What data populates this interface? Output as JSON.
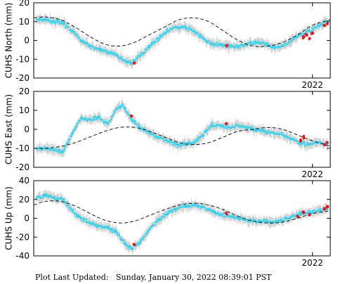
{
  "footer": {
    "label": "Plot Last Updated:",
    "timestamp": "Sunday, January 30, 2022 08:39:01 PST"
  },
  "colors": {
    "obs": "#33d6f0",
    "recent": "#e8141c",
    "errorbar": "#c8c8c8",
    "model": "#000000"
  },
  "chart_data": [
    {
      "type": "scatter",
      "ylabel": "CUHS North (mm)",
      "ylim": [
        -20,
        20
      ],
      "yticks": [
        -20,
        -10,
        0,
        10,
        20
      ],
      "xlim": [
        2017.3,
        2022.3
      ],
      "xtick_labels": [
        {
          "x": 2022.0,
          "label": "2022"
        }
      ],
      "series": [
        {
          "role": "observed",
          "x": [
            2017.35,
            2017.5,
            2017.65,
            2017.8,
            2017.95,
            2018.1,
            2018.25,
            2018.4,
            2018.55,
            2018.7,
            2018.85,
            2018.95,
            2019.1,
            2019.25,
            2019.4,
            2019.55,
            2019.7,
            2019.85,
            2020.0,
            2020.15,
            2020.3,
            2020.45,
            2020.6,
            2020.75,
            2020.9,
            2021.05,
            2021.2,
            2021.35,
            2021.5,
            2021.65,
            2021.8,
            2021.95,
            2022.1,
            2022.25
          ],
          "y": [
            11,
            11,
            10,
            9,
            5,
            0,
            -3,
            -5,
            -6,
            -8,
            -11,
            -12,
            -8,
            -3,
            1,
            5,
            7,
            7,
            5,
            1,
            -2,
            -2,
            -3,
            -3,
            -2,
            -1,
            -2,
            -4,
            -3,
            0,
            3,
            5,
            8,
            10
          ]
        },
        {
          "role": "recent",
          "x": [
            2019.0,
            2020.55,
            2021.85,
            2021.9,
            2021.95,
            2022.0,
            2022.2,
            2022.25
          ],
          "y": [
            -12,
            -3,
            2,
            3,
            1,
            4,
            8,
            9
          ]
        },
        {
          "role": "model",
          "x": [
            2017.3,
            2017.5,
            2017.75,
            2018.0,
            2018.25,
            2018.5,
            2018.75,
            2019.0,
            2019.25,
            2019.5,
            2019.75,
            2020.0,
            2020.25,
            2020.5,
            2020.75,
            2021.0,
            2021.25,
            2021.5,
            2021.75,
            2022.0,
            2022.3
          ],
          "y": [
            12,
            12.5,
            11,
            7,
            2,
            -2,
            -3,
            -1,
            3,
            7,
            11,
            12,
            10,
            5,
            0,
            -3,
            -3,
            -1,
            3,
            8,
            11
          ]
        }
      ]
    },
    {
      "type": "scatter",
      "ylabel": "CUHS East (mm)",
      "ylim": [
        -20,
        20
      ],
      "yticks": [
        -20,
        -10,
        0,
        10,
        20
      ],
      "xlim": [
        2017.3,
        2022.3
      ],
      "xtick_labels": [
        {
          "x": 2022.0,
          "label": "2022"
        }
      ],
      "series": [
        {
          "role": "observed",
          "x": [
            2017.35,
            2017.5,
            2017.65,
            2017.8,
            2017.95,
            2018.1,
            2018.25,
            2018.4,
            2018.55,
            2018.7,
            2018.8,
            2018.95,
            2019.1,
            2019.25,
            2019.4,
            2019.55,
            2019.7,
            2019.85,
            2020.0,
            2020.15,
            2020.3,
            2020.45,
            2020.6,
            2020.75,
            2020.9,
            2021.05,
            2021.2,
            2021.35,
            2021.5,
            2021.65,
            2021.8,
            2021.95,
            2022.1,
            2022.25
          ],
          "y": [
            -10,
            -10,
            -11,
            -12,
            -2,
            6,
            5,
            6,
            3,
            11,
            13,
            5,
            1,
            -2,
            -4,
            -6,
            -8,
            -8,
            -7,
            -3,
            2,
            2,
            1,
            2,
            1,
            0,
            -1,
            -2,
            -3,
            -5,
            -7,
            -8,
            -7,
            -8
          ]
        },
        {
          "role": "recent",
          "x": [
            2018.95,
            2020.55,
            2021.8,
            2021.85,
            2022.2,
            2022.25
          ],
          "y": [
            7,
            3,
            -6,
            -4,
            -8,
            -7
          ]
        },
        {
          "role": "model",
          "x": [
            2017.3,
            2017.5,
            2017.75,
            2018.0,
            2018.25,
            2018.5,
            2018.75,
            2019.0,
            2019.25,
            2019.5,
            2019.75,
            2020.0,
            2020.25,
            2020.5,
            2020.75,
            2021.0,
            2021.25,
            2021.5,
            2021.75,
            2022.0,
            2022.3
          ],
          "y": [
            -10,
            -10,
            -9,
            -7,
            -4,
            -1,
            1,
            1,
            -1,
            -4,
            -7,
            -8,
            -7,
            -4,
            -1,
            0,
            1,
            0,
            -3,
            -6,
            -9
          ]
        }
      ]
    },
    {
      "type": "scatter",
      "ylabel": "CUHS Up (mm)",
      "ylim": [
        -40,
        40
      ],
      "yticks": [
        -40,
        -20,
        0,
        20,
        40
      ],
      "xlim": [
        2017.3,
        2022.3
      ],
      "xtick_labels": [
        {
          "x": 2022.0,
          "label": "2022"
        }
      ],
      "series": [
        {
          "role": "observed",
          "x": [
            2017.35,
            2017.5,
            2017.65,
            2017.8,
            2017.95,
            2018.1,
            2018.25,
            2018.4,
            2018.55,
            2018.7,
            2018.85,
            2018.95,
            2019.1,
            2019.25,
            2019.4,
            2019.55,
            2019.7,
            2019.85,
            2020.0,
            2020.15,
            2020.3,
            2020.45,
            2020.6,
            2020.75,
            2020.9,
            2021.05,
            2021.2,
            2021.35,
            2021.5,
            2021.65,
            2021.8,
            2021.95,
            2022.1,
            2022.25
          ],
          "y": [
            22,
            24,
            22,
            20,
            8,
            0,
            -5,
            -8,
            -10,
            -15,
            -28,
            -32,
            -25,
            -12,
            -2,
            5,
            10,
            13,
            14,
            12,
            8,
            4,
            2,
            0,
            -2,
            -4,
            -3,
            -4,
            -2,
            2,
            5,
            7,
            8,
            10
          ]
        },
        {
          "role": "recent",
          "x": [
            2019.0,
            2020.55,
            2021.75,
            2021.85,
            2021.95,
            2022.2,
            2022.25
          ],
          "y": [
            -28,
            5,
            2,
            6,
            4,
            10,
            12
          ]
        },
        {
          "role": "model",
          "x": [
            2017.3,
            2017.5,
            2017.75,
            2018.0,
            2018.25,
            2018.5,
            2018.75,
            2019.0,
            2019.25,
            2019.5,
            2019.75,
            2020.0,
            2020.25,
            2020.5,
            2020.75,
            2021.0,
            2021.25,
            2021.5,
            2021.75,
            2022.0,
            2022.3
          ],
          "y": [
            14,
            18,
            18,
            13,
            5,
            -2,
            -5,
            -3,
            3,
            9,
            14,
            16,
            14,
            9,
            2,
            -3,
            -5,
            -4,
            0,
            5,
            8
          ]
        }
      ]
    }
  ]
}
